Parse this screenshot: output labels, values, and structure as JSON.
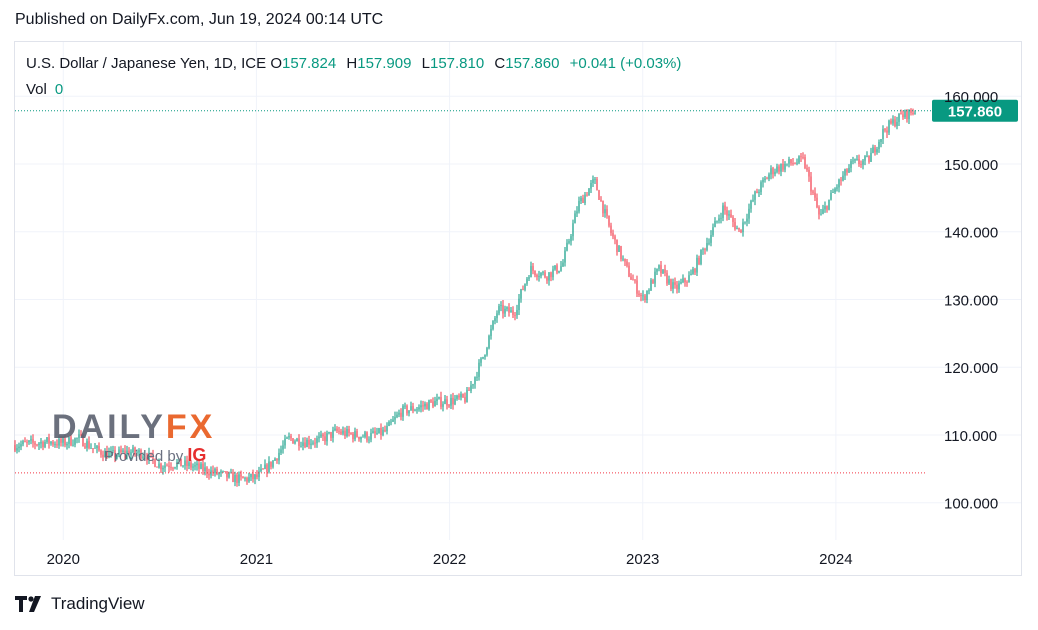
{
  "published": "Published on DailyFx.com, Jun 19, 2024 00:14 UTC",
  "legend": {
    "symbol": "U.S. Dollar / Japanese Yen, 1D, ICE",
    "open_label": "O",
    "open": "157.824",
    "high_label": "H",
    "high": "157.909",
    "low_label": "L",
    "low": "157.810",
    "close_label": "C",
    "close": "157.860",
    "change": "+0.041 (+0.03%)",
    "vol_label": "Vol",
    "vol": "0"
  },
  "watermark": {
    "brand_a": "DAILY",
    "brand_b": "FX",
    "sub": "Provided by",
    "sub_brand": "IG"
  },
  "footer": {
    "brand": "TradingView"
  },
  "colors": {
    "up": "#089981",
    "down": "#f23645",
    "price_tag": "#089981",
    "support_line": "#f23645"
  },
  "chart_data": {
    "type": "candlestick",
    "title": "",
    "xlabel": "",
    "ylabel": "",
    "x_ticks": [
      "2020",
      "2021",
      "2022",
      "2023",
      "2024"
    ],
    "y_ticks": [
      "100.000",
      "110.000",
      "120.000",
      "130.000",
      "140.000",
      "150.000",
      "160.000"
    ],
    "ylim": [
      94.5,
      168
    ],
    "last_price": "157.860",
    "support_level": 104.4,
    "series": [
      {
        "x": [
          "2019-10",
          "2019-11",
          "2019-12",
          "2020-01",
          "2020-02",
          "2020-03",
          "2020-04",
          "2020-05",
          "2020-06",
          "2020-07",
          "2020-08",
          "2020-09",
          "2020-10",
          "2020-11",
          "2020-12",
          "2021-01",
          "2021-02",
          "2021-03",
          "2021-04",
          "2021-05",
          "2021-06",
          "2021-07",
          "2021-08",
          "2021-09",
          "2021-10",
          "2021-11",
          "2021-12",
          "2022-01",
          "2022-02",
          "2022-03",
          "2022-04",
          "2022-05",
          "2022-06",
          "2022-07",
          "2022-08",
          "2022-09",
          "2022-10",
          "2022-11",
          "2022-12",
          "2023-01",
          "2023-02",
          "2023-03",
          "2023-04",
          "2023-05",
          "2023-06",
          "2023-07",
          "2023-08",
          "2023-09",
          "2023-10",
          "2023-11",
          "2023-12",
          "2024-01",
          "2024-02",
          "2024-03",
          "2024-04",
          "2024-05",
          "2024-06"
        ],
        "values": [
          108.5,
          108.7,
          109.0,
          108.8,
          109.5,
          107.8,
          107.0,
          107.5,
          107.3,
          105.5,
          105.8,
          105.4,
          104.7,
          104.0,
          103.4,
          103.7,
          106.0,
          109.5,
          109.0,
          109.3,
          110.5,
          110.0,
          109.8,
          110.5,
          113.5,
          114.0,
          114.8,
          115.0,
          115.4,
          121.0,
          128.5,
          128.0,
          134.5,
          133.5,
          135.0,
          144.0,
          147.5,
          140.0,
          134.5,
          130.0,
          134.5,
          131.5,
          133.5,
          138.5,
          143.5,
          140.0,
          145.5,
          149.0,
          150.0,
          150.5,
          142.0,
          146.5,
          150.0,
          150.5,
          155.0,
          157.0,
          157.9
        ]
      }
    ]
  }
}
